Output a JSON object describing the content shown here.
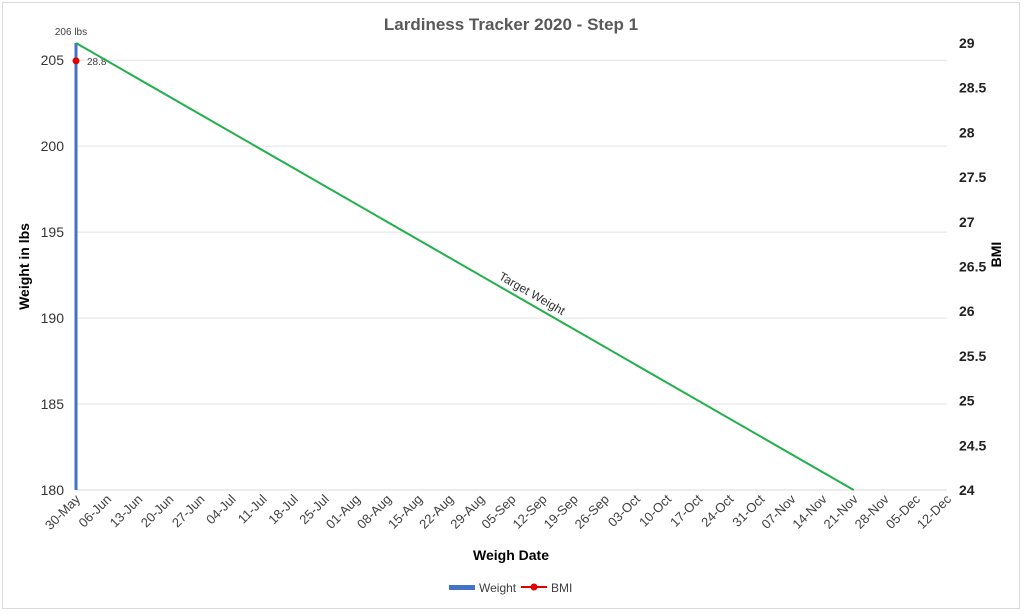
{
  "chart_data": {
    "type": "bar",
    "title": "Lardiness Tracker 2020 - Step 1",
    "xlabel": "Weigh Date",
    "ylabel": "Weight in lbs",
    "y2label": "BMI",
    "x_ticks": [
      "30-May",
      "06-Jun",
      "13-Jun",
      "20-Jun",
      "27-Jun",
      "04-Jul",
      "11-Jul",
      "18-Jul",
      "25-Jul",
      "01-Aug",
      "08-Aug",
      "15-Aug",
      "22-Aug",
      "29-Aug",
      "05-Sep",
      "12-Sep",
      "19-Sep",
      "26-Sep",
      "03-Oct",
      "10-Oct",
      "17-Oct",
      "24-Oct",
      "31-Oct",
      "07-Nov",
      "14-Nov",
      "21-Nov",
      "28-Nov",
      "05-Dec",
      "12-Dec"
    ],
    "ylim": [
      180,
      206
    ],
    "y_ticks": [
      "205",
      "200",
      "195",
      "190",
      "185",
      "180"
    ],
    "y2lim": [
      24,
      29
    ],
    "y2_ticks": [
      "29",
      "28.5",
      "28",
      "27.5",
      "27",
      "26.5",
      "26",
      "25.5",
      "25",
      "24.5",
      "24"
    ],
    "series": [
      {
        "name": "Weight",
        "type": "bar",
        "color": "#4472c4",
        "axis": "left",
        "points": [
          {
            "x": "30-May",
            "y": 206,
            "label": "206 lbs"
          }
        ]
      },
      {
        "name": "BMI",
        "type": "line-marker",
        "color": "#e00000",
        "axis": "right",
        "points": [
          {
            "x": "30-May",
            "y": 28.8,
            "label": "28.8"
          }
        ]
      },
      {
        "type": "line",
        "color": "#22b04b",
        "axis": "left",
        "label": "Target Weight",
        "points": [
          {
            "x": "30-May",
            "y": 206
          },
          {
            "x": "21-Nov",
            "y": 180
          }
        ]
      }
    ],
    "legend": [
      {
        "name": "Weight",
        "color": "#4472c4",
        "marker": "bar"
      },
      {
        "name": "BMI",
        "color": "#e00000",
        "marker": "line-dot"
      }
    ],
    "legend_position": "bottom",
    "grid": true
  }
}
